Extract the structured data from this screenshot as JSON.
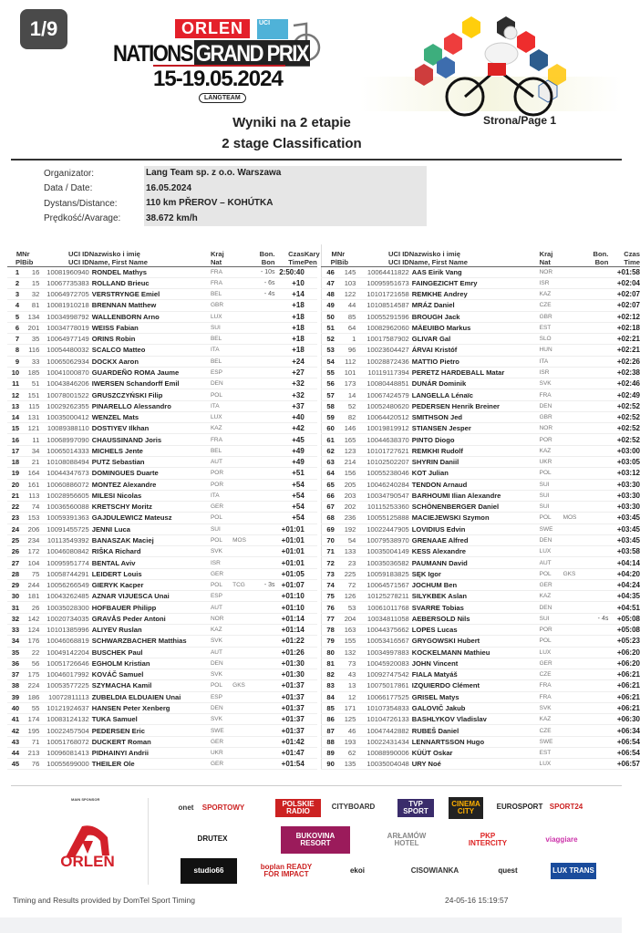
{
  "badge": "1/9",
  "logo": {
    "brand": "ORLEN",
    "uci": "UCI",
    "event": "NATIONS",
    "event2": "GRAND PRIX",
    "dates": "15-19.05.2024",
    "org_logo": "LANGTEAM"
  },
  "title": {
    "line1": "Wyniki na 2 etapie",
    "line2": "2 stage Classification",
    "page": "Strona/Page 1"
  },
  "info": [
    {
      "label": "Organizator:",
      "value": "Lang Team sp. z o.o. Warszawa"
    },
    {
      "label": "Data / Date:",
      "value": "16.05.2024"
    },
    {
      "label": "Dystans/Distance:",
      "value": "110 km PŘEROV – KOHÚTKA"
    },
    {
      "label": "Prędkość/Avarage:",
      "value": "38.672 km/h"
    }
  ],
  "columns": {
    "pl": "M\nPl",
    "bib": "Nr\nBib",
    "uci": "UCI ID\nUCI ID",
    "name": "Nazwisko i imię\nName, First Name",
    "nat": "Kraj\nNat",
    "bon": "Bon.\nBon",
    "time": "Czas\nTime",
    "pen": "Kary\nPen"
  },
  "rows": [
    [
      "1",
      "16",
      "10081960940",
      "RONDEL Mathys",
      "FRA",
      "",
      "- 10s",
      "2:50:40"
    ],
    [
      "2",
      "15",
      "10067735383",
      "ROLLAND Brieuc",
      "FRA",
      "",
      "- 6s",
      "+10"
    ],
    [
      "3",
      "32",
      "10064972705",
      "VERSTRYNGE Emiel",
      "BEL",
      "",
      "- 4s",
      "+14"
    ],
    [
      "4",
      "81",
      "10081910218",
      "BRENNAN Matthew",
      "GBR",
      "",
      "",
      "+18"
    ],
    [
      "5",
      "134",
      "10034998792",
      "WALLENBORN Arno",
      "LUX",
      "",
      "",
      "+18"
    ],
    [
      "6",
      "201",
      "10034778019",
      "WEISS Fabian",
      "SUI",
      "",
      "",
      "+18"
    ],
    [
      "7",
      "35",
      "10064977149",
      "ORINS Robin",
      "BEL",
      "",
      "",
      "+18"
    ],
    [
      "8",
      "116",
      "10054480032",
      "SCALCO Matteo",
      "ITA",
      "",
      "",
      "+18"
    ],
    [
      "9",
      "33",
      "10065062934",
      "DOCKX  Aaron",
      "BEL",
      "",
      "",
      "+24"
    ],
    [
      "10",
      "185",
      "10041000870",
      "GUARDEÑO ROMA Jaume",
      "ESP",
      "",
      "",
      "+27"
    ],
    [
      "11",
      "51",
      "10043846206",
      "IWERSEN Schandorff Emil",
      "DEN",
      "",
      "",
      "+32"
    ],
    [
      "12",
      "151",
      "10078001522",
      "GRUSZCZYŃSKI  Filip",
      "POL",
      "",
      "",
      "+32"
    ],
    [
      "13",
      "115",
      "10029262355",
      "PINARELLO Alessandro",
      "ITA",
      "",
      "",
      "+37"
    ],
    [
      "14",
      "131",
      "10035000412",
      "WENZEL Mats",
      "LUX",
      "",
      "",
      "+40"
    ],
    [
      "15",
      "121",
      "10089388110",
      "DOSTIYEV Ilkhan",
      "KAZ",
      "",
      "",
      "+42"
    ],
    [
      "16",
      "11",
      "10068997090",
      "CHAUSSINAND Joris",
      "FRA",
      "",
      "",
      "+45"
    ],
    [
      "17",
      "34",
      "10065014333",
      "MICHELS Jente",
      "BEL",
      "",
      "",
      "+49"
    ],
    [
      "18",
      "21",
      "10108088494",
      "PUTZ Sebastian",
      "AUT",
      "",
      "",
      "+49"
    ],
    [
      "19",
      "164",
      "10044347673",
      "DOMINGUES Duarte",
      "POR",
      "",
      "",
      "+51"
    ],
    [
      "20",
      "161",
      "10060886072",
      "MONTEZ Alexandre",
      "POR",
      "",
      "",
      "+54"
    ],
    [
      "21",
      "113",
      "10028956605",
      "MILESI Nicolas",
      "ITA",
      "",
      "",
      "+54"
    ],
    [
      "22",
      "74",
      "10036560088",
      "KRETSCHY Moritz",
      "GER",
      "",
      "",
      "+54"
    ],
    [
      "23",
      "153",
      "10059391363",
      "GAJDULEWICZ Mateusz",
      "POL",
      "",
      "",
      "+54"
    ],
    [
      "24",
      "206",
      "10091455725",
      "JENNI Luca",
      "SUI",
      "",
      "",
      "+01:01"
    ],
    [
      "25",
      "234",
      "10113549392",
      "BANASZAK Maciej",
      "POL",
      "MOS",
      "",
      "+01:01"
    ],
    [
      "26",
      "172",
      "10046080842",
      "RIŠKA Richard",
      "SVK",
      "",
      "",
      "+01:01"
    ],
    [
      "27",
      "104",
      "10095951774",
      "BENTAL Aviv",
      "ISR",
      "",
      "",
      "+01:01"
    ],
    [
      "28",
      "75",
      "10058744291",
      "LEIDERT Louis",
      "GER",
      "",
      "",
      "+01:05"
    ],
    [
      "29",
      "244",
      "10056266549",
      "GIERYK Kacper",
      "POL",
      "TCG",
      "- 3s",
      "+01:07"
    ],
    [
      "30",
      "181",
      "10043262485",
      "AZNAR VIJUESCA Unai",
      "ESP",
      "",
      "",
      "+01:10"
    ],
    [
      "31",
      "26",
      "10035028300",
      "HOFBAUER Philipp",
      "AUT",
      "",
      "",
      "+01:10"
    ],
    [
      "32",
      "142",
      "10020734035",
      "GRAVÅS Peder Antoni",
      "NOR",
      "",
      "",
      "+01:14"
    ],
    [
      "33",
      "124",
      "10101385996",
      "ALIYEV Ruslan",
      "KAZ",
      "",
      "",
      "+01:14"
    ],
    [
      "34",
      "176",
      "10046068819",
      "SCHWARZBACHER Matthias",
      "SVK",
      "",
      "",
      "+01:22"
    ],
    [
      "35",
      "22",
      "10049142204",
      "BUSCHEK Paul",
      "AUT",
      "",
      "",
      "+01:26"
    ],
    [
      "36",
      "56",
      "10051726646",
      "EGHOLM Kristian",
      "DEN",
      "",
      "",
      "+01:30"
    ],
    [
      "37",
      "175",
      "10046017992",
      "KOVÁČ Samuel",
      "SVK",
      "",
      "",
      "+01:30"
    ],
    [
      "38",
      "224",
      "10053577225",
      "SZYMACHA Kamil",
      "POL",
      "GKS",
      "",
      "+01:37"
    ],
    [
      "39",
      "186",
      "10072811113",
      "ZUBELDIA ELDUAIEN Unai",
      "ESP",
      "",
      "",
      "+01:37"
    ],
    [
      "40",
      "55",
      "10121924637",
      "HANSEN Peter Xenberg",
      "DEN",
      "",
      "",
      "+01:37"
    ],
    [
      "41",
      "174",
      "10083124132",
      "TUKA Samuel",
      "SVK",
      "",
      "",
      "+01:37"
    ],
    [
      "42",
      "195",
      "10022457504",
      "PEDERSEN Eric",
      "SWE",
      "",
      "",
      "+01:37"
    ],
    [
      "43",
      "71",
      "10051768072",
      "DUCKERT Roman",
      "GER",
      "",
      "",
      "+01:42"
    ],
    [
      "44",
      "213",
      "10096081413",
      "PIDHAINYI Andrii",
      "UKR",
      "",
      "",
      "+01:47"
    ],
    [
      "45",
      "76",
      "10055699000",
      "THEILER Ole",
      "GER",
      "",
      "",
      "+01:54"
    ],
    [
      "46",
      "145",
      "10064411822",
      "AAS Eirik Vang",
      "NOR",
      "",
      "",
      "+01:58"
    ],
    [
      "47",
      "103",
      "10095951673",
      "FAINGEZICHT Emry",
      "ISR",
      "",
      "",
      "+02:04"
    ],
    [
      "48",
      "122",
      "10101721658",
      "REMKHE Andrey",
      "KAZ",
      "",
      "",
      "+02:07"
    ],
    [
      "49",
      "44",
      "10108514587",
      "MRÁZ Daniel",
      "CZE",
      "",
      "",
      "+02:07"
    ],
    [
      "50",
      "85",
      "10055291596",
      "BROUGH Jack",
      "GBR",
      "",
      "",
      "+02:12"
    ],
    [
      "51",
      "64",
      "10082962060",
      "MÄEUIBO Markus",
      "EST",
      "",
      "",
      "+02:18"
    ],
    [
      "52",
      "1",
      "10017587902",
      "GLIVAR Gal",
      "SLO",
      "",
      "",
      "+02:21"
    ],
    [
      "53",
      "96",
      "10023604427",
      "ÁRVAI Kristóf",
      "HUN",
      "",
      "",
      "+02:21"
    ],
    [
      "54",
      "112",
      "10028872436",
      "MATTIO Pietro",
      "ITA",
      "",
      "",
      "+02:26"
    ],
    [
      "55",
      "101",
      "10119117394",
      "PERETZ HARDEBALL Matar",
      "ISR",
      "",
      "",
      "+02:38"
    ],
    [
      "56",
      "173",
      "10080448851",
      "DUNÁR Dominik",
      "SVK",
      "",
      "",
      "+02:46"
    ],
    [
      "57",
      "14",
      "10067424579",
      "LANGELLA Lénaïc",
      "FRA",
      "",
      "",
      "+02:49"
    ],
    [
      "58",
      "52",
      "10052480620",
      "PEDERSEN Henrik Breiner",
      "DEN",
      "",
      "",
      "+02:52"
    ],
    [
      "59",
      "82",
      "10064420512",
      "SMITHSON Jed",
      "GBR",
      "",
      "",
      "+02:52"
    ],
    [
      "60",
      "146",
      "10019819912",
      "STIANSEN Jesper",
      "NOR",
      "",
      "",
      "+02:52"
    ],
    [
      "61",
      "165",
      "10044638370",
      "PINTO  Diogo",
      "POR",
      "",
      "",
      "+02:52"
    ],
    [
      "62",
      "123",
      "10101727621",
      "REMKHI Rudolf",
      "KAZ",
      "",
      "",
      "+03:00"
    ],
    [
      "63",
      "214",
      "10102502207",
      "SHYRIN Daniil",
      "UKR",
      "",
      "",
      "+03:05"
    ],
    [
      "64",
      "156",
      "10055238046",
      "KOT Julian",
      "POL",
      "",
      "",
      "+03:12"
    ],
    [
      "65",
      "205",
      "10046240284",
      "TENDON Arnaud",
      "SUI",
      "",
      "",
      "+03:30"
    ],
    [
      "66",
      "203",
      "10034790547",
      "BARHOUMI Ilian Alexandre",
      "SUI",
      "",
      "",
      "+03:30"
    ],
    [
      "67",
      "202",
      "10115253360",
      "SCHÖNENBERGER Daniel",
      "SUI",
      "",
      "",
      "+03:30"
    ],
    [
      "68",
      "236",
      "10055125888",
      "MACIEJEWSKI Szymon",
      "POL",
      "MOS",
      "",
      "+03:45"
    ],
    [
      "69",
      "192",
      "10022447905",
      "LOVIDIUS Edvin",
      "SWE",
      "",
      "",
      "+03:45"
    ],
    [
      "70",
      "54",
      "10079538970",
      "GRENAAE Alfred",
      "DEN",
      "",
      "",
      "+03:45"
    ],
    [
      "71",
      "133",
      "10035004149",
      "KESS Alexandre",
      "LUX",
      "",
      "",
      "+03:58"
    ],
    [
      "72",
      "23",
      "10035036582",
      "PAUMANN David",
      "AUT",
      "",
      "",
      "+04:14"
    ],
    [
      "73",
      "225",
      "10059183825",
      "SĘK  Igor",
      "POL",
      "GKS",
      "",
      "+04:20"
    ],
    [
      "74",
      "72",
      "10064571567",
      "JOCHUM Ben",
      "GER",
      "",
      "",
      "+04:24"
    ],
    [
      "75",
      "126",
      "10125278211",
      "SILYKBEK Aslan",
      "KAZ",
      "",
      "",
      "+04:35"
    ],
    [
      "76",
      "53",
      "10061011768",
      "SVARRE Tobias",
      "DEN",
      "",
      "",
      "+04:51"
    ],
    [
      "77",
      "204",
      "10034811058",
      "AEBERSOLD Nils",
      "SUI",
      "",
      "- 4s",
      "+05:08"
    ],
    [
      "78",
      "163",
      "10044375662",
      "LOPES  Lucas",
      "POR",
      "",
      "",
      "+05:08"
    ],
    [
      "79",
      "155",
      "10053416567",
      "GRYGOWSKI Hubert",
      "POL",
      "",
      "",
      "+05:23"
    ],
    [
      "80",
      "132",
      "10034997883",
      "KOCKELMANN Mathieu",
      "LUX",
      "",
      "",
      "+06:20"
    ],
    [
      "81",
      "73",
      "10045920083",
      "JOHN Vincent",
      "GER",
      "",
      "",
      "+06:20"
    ],
    [
      "82",
      "43",
      "10092747542",
      "FIALA Matyáš",
      "CZE",
      "",
      "",
      "+06:21"
    ],
    [
      "83",
      "13",
      "10075017861",
      "IZQUIERDO Clément",
      "FRA",
      "",
      "",
      "+06:21"
    ],
    [
      "84",
      "12",
      "10066177525",
      "GRISEL Matys",
      "FRA",
      "",
      "",
      "+06:21"
    ],
    [
      "85",
      "171",
      "10107354833",
      "GALOVIČ Jakub",
      "SVK",
      "",
      "",
      "+06:21"
    ],
    [
      "86",
      "125",
      "10104726133",
      "BASHLYKOV  Vladislav",
      "KAZ",
      "",
      "",
      "+06:30"
    ],
    [
      "87",
      "46",
      "10047442882",
      "RUBEŠ  Daniel",
      "CZE",
      "",
      "",
      "+06:34"
    ],
    [
      "88",
      "193",
      "10022431434",
      "LENNARTSSON Hugo",
      "SWE",
      "",
      "",
      "+06:54"
    ],
    [
      "89",
      "62",
      "10088990006",
      "KÜÜT Oskar",
      "EST",
      "",
      "",
      "+06:54"
    ],
    [
      "90",
      "135",
      "10035004048",
      "URY Noé",
      "LUX",
      "",
      "",
      "+06:57"
    ]
  ],
  "sponsors": {
    "main_label": "MAIN SPONSOR",
    "main": "ORLEN",
    "items": [
      "onet",
      "SPORTOWY",
      "POLSKIE RADIO",
      "CITYBOARD",
      "TVP SPORT",
      "CINEMA CITY",
      "EUROSPORT",
      "SPORT24",
      "DRUTEX",
      "BUKOVINA RESORT",
      "ARŁAMÓW HOTEL",
      "PKP INTERCITY",
      "viaggiare",
      "studio66",
      "boplan READY FOR IMPACT",
      "ekoi",
      "CISOWIANKA",
      "quest",
      "LUX TRANS"
    ]
  },
  "footer": {
    "timing": "Timing and Results provided by DomTel Sport Timing",
    "stamp": "24-05-16 15:19:57"
  },
  "colors": {
    "brand_red": "#e4202a",
    "uci_blue": "#4fb2d8",
    "badge_bg": "#4a4a4a"
  }
}
